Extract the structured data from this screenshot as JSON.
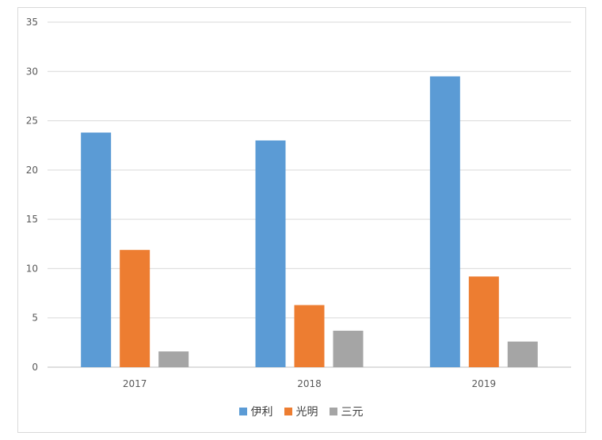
{
  "chart_data": {
    "type": "bar",
    "categories": [
      "2017",
      "2018",
      "2019"
    ],
    "series": [
      {
        "name": "伊利",
        "color": "#5b9bd5",
        "values": [
          23.8,
          23.0,
          29.5
        ]
      },
      {
        "name": "光明",
        "color": "#ed7d31",
        "values": [
          11.9,
          6.3,
          9.2
        ]
      },
      {
        "name": "三元",
        "color": "#a5a5a5",
        "values": [
          1.6,
          3.7,
          2.6
        ]
      }
    ],
    "ylim": [
      0,
      35
    ],
    "yticks": [
      0,
      5,
      10,
      15,
      20,
      25,
      30,
      35
    ],
    "grid": true,
    "legend_position": "bottom"
  }
}
